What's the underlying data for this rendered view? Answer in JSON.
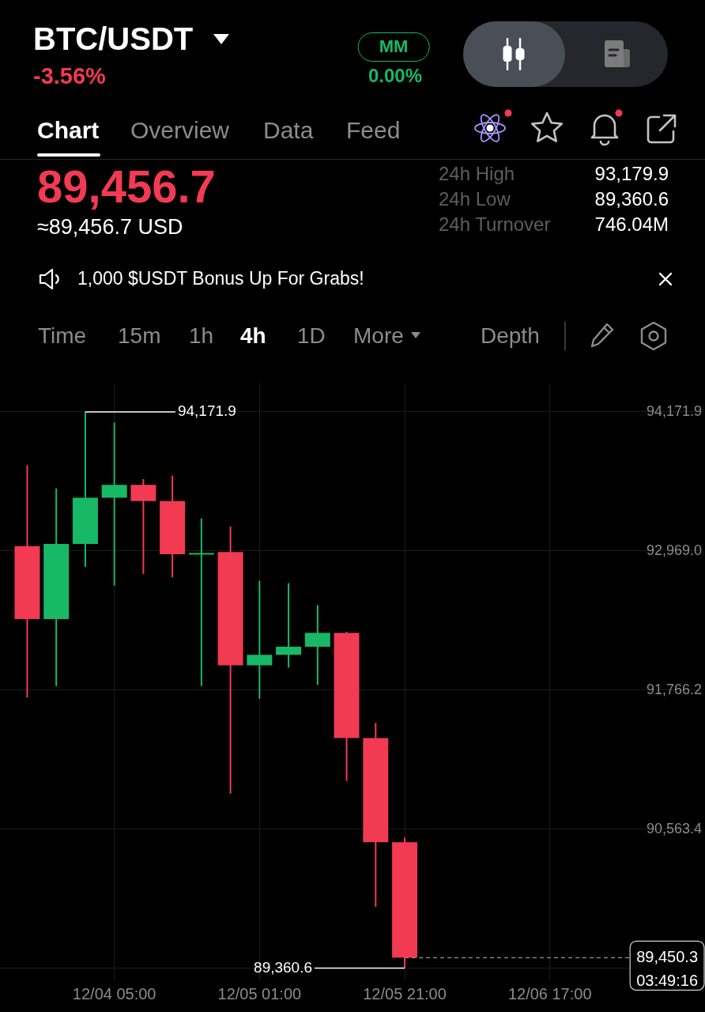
{
  "chart_data": {
    "type": "candlestick",
    "title": "BTC/USDT",
    "subtitle": "-3.56%",
    "x": [
      "--12-03T17:00",
      "--12-03T21:00",
      "--12-04T01:00",
      "--12-04T05:00",
      "--12-04T09:00",
      "--12-04T13:00",
      "--12-04T17:00",
      "--12-04T21:00",
      "--12-05T01:00",
      "--12-05T05:00",
      "--12-05T09:00",
      "--12-05T13:00",
      "--12-05T17:00",
      "--12-05T21:00"
    ],
    "ohlc": [
      [
        93010,
        93710,
        91700,
        92380
      ],
      [
        92380,
        93510,
        91800,
        93030
      ],
      [
        93030,
        94171.9,
        92830,
        93430
      ],
      [
        93430,
        94080,
        92670,
        93540
      ],
      [
        93540,
        93590,
        92770,
        93400
      ],
      [
        93400,
        93620,
        92740,
        92940
      ],
      [
        92940,
        93250,
        91800,
        92950
      ],
      [
        92960,
        93180,
        90870,
        91980
      ],
      [
        91980,
        92710,
        91690,
        92070
      ],
      [
        92070,
        92690,
        91960,
        92140
      ],
      [
        92140,
        92500,
        91810,
        92260
      ],
      [
        92260,
        92270,
        90980,
        91350
      ],
      [
        91350,
        91480,
        89890,
        90450
      ],
      [
        90450,
        90490,
        89360.6,
        89450.3
      ]
    ],
    "colors": [
      "#f23a52",
      "#17b866",
      "#17b866",
      "#17b866",
      "#f23a52",
      "#f23a52",
      "#17b866",
      "#f23a52",
      "#17b866",
      "#17b866",
      "#17b866",
      "#f23a52",
      "#f23a52",
      "#f23a52"
    ],
    "xlim": [
      "--12-03T13:15",
      "--12-07T13:30"
    ],
    "xticks": [
      {
        "value": "--12-04T05:00",
        "label": "12/04 05:00"
      },
      {
        "value": "--12-05T01:00",
        "label": "12/05 01:00"
      },
      {
        "value": "--12-05T21:00",
        "label": "12/05 21:00"
      },
      {
        "value": "--12-06T17:00",
        "label": "12/06 17:00"
      }
    ],
    "ylim": [
      89254,
      94419
    ],
    "yticks": [
      {
        "value": 89360.6,
        "label": null
      },
      {
        "value": 90563.4,
        "label": "90,563.4"
      },
      {
        "value": 91766.2,
        "label": "91,766.2"
      },
      {
        "value": 92969,
        "label": "92,969.0"
      },
      {
        "value": 94171.9,
        "label": "94,171.9"
      }
    ],
    "grid": true,
    "ref_lines": [
      {
        "axis": "y",
        "value": 89450.3,
        "label": "89,450.3\n03:49:16",
        "color": "#bdbdbd",
        "line_style": "dashed"
      }
    ],
    "annotations": [
      "MM",
      "0.00%",
      "Chart",
      "Overview",
      "Data",
      "Feed",
      "89,456.7",
      "≈89,456.7 USD",
      "24h High",
      "93,179.9",
      "24h Low",
      "89,360.6",
      "24h Turnover",
      "746.04M",
      "1,000 $USDT Bonus Up For Grabs!",
      "Time",
      "15m",
      "1h",
      "4h",
      "1D",
      "More",
      "Depth",
      {
        "text": "94,171.9",
        "x": "--12-04T01:00",
        "y": 94171.9
      },
      {
        "text": "89,360.6",
        "x": "--12-05T21:00",
        "y": 89360.6
      }
    ]
  }
}
